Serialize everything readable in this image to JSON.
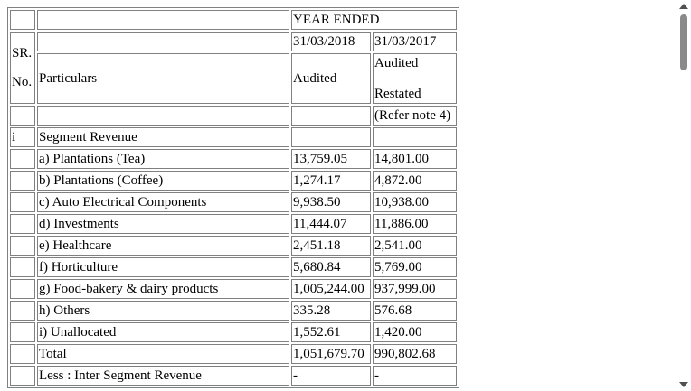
{
  "table": {
    "header": {
      "year_ended": "YEAR ENDED",
      "date1": "31/03/2018",
      "date2": "31/03/2017",
      "sr_line1": "SR.",
      "sr_line2": "No.",
      "particulars": "Particulars",
      "audited1": "Audited",
      "audited2": "Audited",
      "restated": "Restated",
      "refer_note": "(Refer note 4)"
    },
    "section": {
      "sr": "i",
      "label": "Segment Revenue"
    },
    "rows": [
      {
        "label": "a) Plantations (Tea)",
        "v2018": "13,759.05",
        "v2017": "14,801.00"
      },
      {
        "label": "b) Plantations (Coffee)",
        "v2018": "1,274.17",
        "v2017": "4,872.00"
      },
      {
        "label": "c) Auto Electrical Components",
        "v2018": "9,938.50",
        "v2017": "10,938.00"
      },
      {
        "label": "d) Investments",
        "v2018": "11,444.07",
        "v2017": "11,886.00"
      },
      {
        "label": "e) Healthcare",
        "v2018": "2,451.18",
        "v2017": "2,541.00"
      },
      {
        "label": "f) Horticulture",
        "v2018": "5,680.84",
        "v2017": "5,769.00"
      },
      {
        "label": "g) Food-bakery & dairy products",
        "v2018": "1,005,244.00",
        "v2017": "937,999.00"
      },
      {
        "label": "h) Others",
        "v2018": "335.28",
        "v2017": "576.68"
      },
      {
        "label": "i) Unallocated",
        "v2018": "1,552.61",
        "v2017": "1,420.00"
      },
      {
        "label": "Total",
        "v2018": "1,051,679.70",
        "v2017": "990,802.68"
      },
      {
        "label": "Less : Inter Segment Revenue",
        "v2018": "-",
        "v2017": "-"
      }
    ]
  }
}
